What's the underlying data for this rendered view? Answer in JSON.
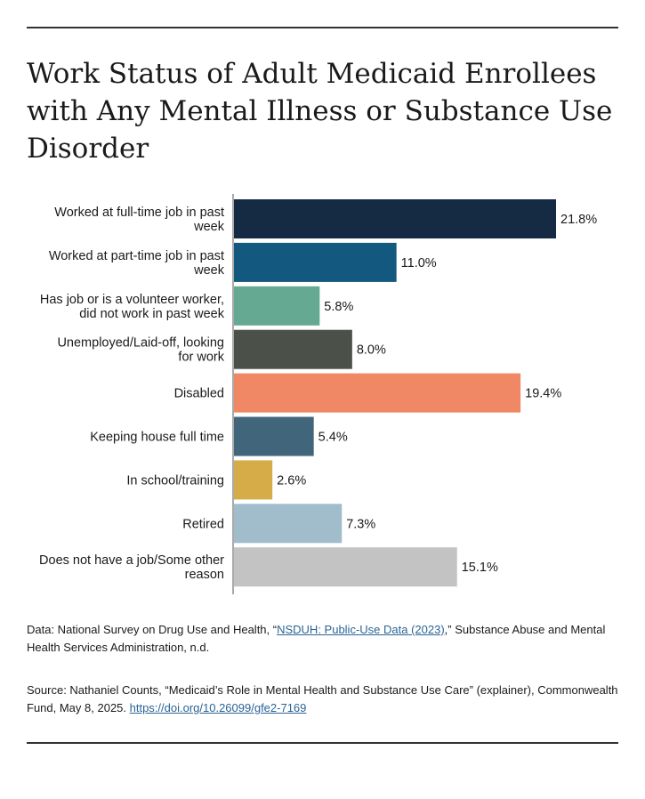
{
  "title": "Work Status of Adult Medicaid Enrollees with Any Mental Illness or Substance Use Disorder",
  "chart_data": {
    "type": "bar",
    "orientation": "horizontal",
    "categories": [
      [
        "Worked at full-time job in past",
        "week"
      ],
      [
        "Worked at part-time job in past",
        "week"
      ],
      [
        "Has job or is a volunteer worker,",
        "did not work in past week"
      ],
      [
        "Unemployed/Laid-off, looking",
        "for work"
      ],
      [
        "Disabled"
      ],
      [
        "Keeping house full time"
      ],
      [
        "In school/training"
      ],
      [
        "Retired"
      ],
      [
        "Does not have a job/Some other",
        "reason"
      ]
    ],
    "values": [
      21.8,
      11.0,
      5.8,
      8.0,
      19.4,
      5.4,
      2.6,
      7.3,
      15.1
    ],
    "value_labels": [
      "21.8%",
      "11.0%",
      "5.8%",
      "8.0%",
      "19.4%",
      "5.4%",
      "2.6%",
      "7.3%",
      "15.1%"
    ],
    "colors": [
      "#152b44",
      "#13587f",
      "#66a993",
      "#4b5049",
      "#f08866",
      "#41657a",
      "#d6ac48",
      "#a1bccb",
      "#c3c3c3"
    ],
    "xlim": [
      0,
      21.8
    ],
    "grid": false,
    "legend": "none"
  },
  "notes": {
    "data_prefix": "Data: National Survey on Drug Use and Health, “",
    "data_link": "NSDUH: Public-Use Data (2023)",
    "data_suffix": ",” Substance Abuse and Mental Health Services Administration, n.d.",
    "source_text": "Source: Nathaniel Counts, “Medicaid’s Role in Mental Health and Substance Use Care” (explainer), Commonwealth Fund, May 8, 2025. ",
    "source_link": "https://doi.org/10.26099/gfe2-7169"
  }
}
